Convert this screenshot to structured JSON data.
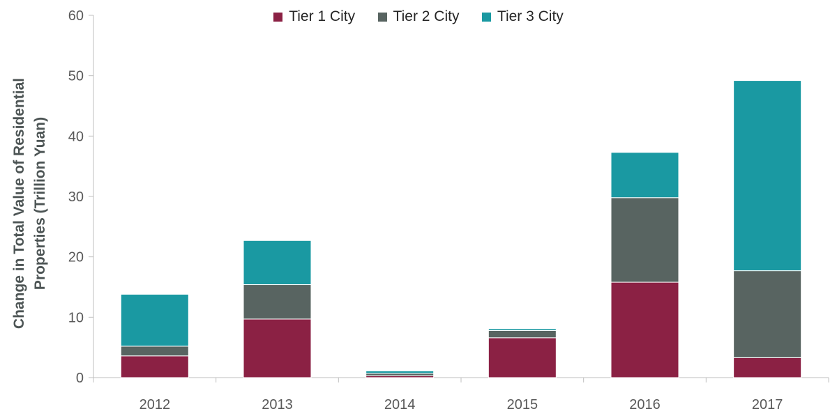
{
  "chart_data": {
    "type": "bar",
    "stacked": true,
    "title": "",
    "xlabel": "",
    "ylabel": "Change in Total Value of Residential Properties (Trillion Yuan)",
    "ylabel_lines": [
      "Change in Total Value of Residential",
      "Properties (Trillion Yuan)"
    ],
    "ylim": [
      0,
      60
    ],
    "yticks": [
      "0",
      "10",
      "20",
      "30",
      "40",
      "50",
      "60"
    ],
    "categories": [
      "2012",
      "2013",
      "2014",
      "2015",
      "2016",
      "2017"
    ],
    "series": [
      {
        "name": "Tier 1 City",
        "color": "#8b2144",
        "values": [
          3.6,
          9.7,
          0.3,
          6.6,
          15.8,
          3.3
        ]
      },
      {
        "name": "Tier 2 City",
        "color": "#586461",
        "values": [
          1.6,
          5.7,
          0.4,
          1.2,
          14.0,
          14.4
        ]
      },
      {
        "name": "Tier 3 City",
        "color": "#1a99a2",
        "values": [
          8.6,
          7.3,
          0.4,
          0.3,
          7.5,
          31.5
        ]
      }
    ],
    "legend_position": "top-center",
    "grid": false
  }
}
